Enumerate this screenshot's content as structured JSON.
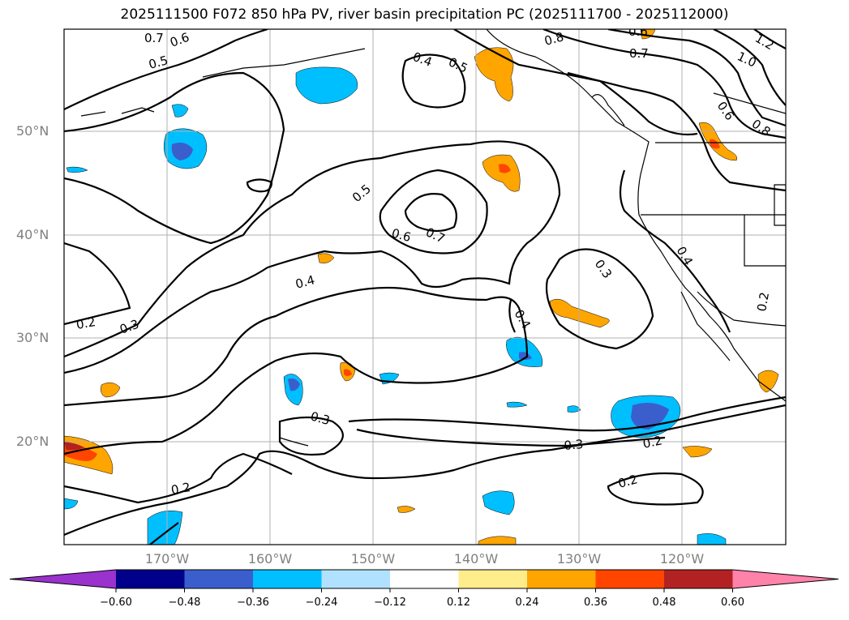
{
  "title": "2025111500 F072 850 hPa PV, river basin precipitation PC (2025111700 - 2025112000)",
  "lat_labels": [
    "50°N",
    "40°N",
    "30°N",
    "20°N"
  ],
  "lon_labels": [
    "170°W",
    "160°W",
    "150°W",
    "140°W",
    "130°W",
    "120°W"
  ],
  "contour_labels": [
    "0.7",
    "0.6",
    "0.5",
    "0.4",
    "0.5",
    "0.8",
    "0.6",
    "0.7",
    "1.0",
    "1.2",
    "0.6",
    "0.8",
    "0.5",
    "0.7",
    "0.6",
    "0.4",
    "0.3",
    "0.4",
    "0.4",
    "0.3",
    "0.2",
    "0.2",
    "0.3",
    "0.2",
    "0.3",
    "0.2",
    "0.2"
  ],
  "colorbar": {
    "ticks": [
      "−0.60",
      "−0.48",
      "−0.36",
      "−0.24",
      "−0.12",
      "0.12",
      "0.24",
      "0.36",
      "0.48",
      "0.60"
    ],
    "colors": [
      "#9a32cd",
      "#00008b",
      "#3a5fcd",
      "#00bfff",
      "#b0e2ff",
      "#ffffff",
      "#ffec8b",
      "#ffa500",
      "#ff4500",
      "#b22222",
      "#ff82ab"
    ]
  },
  "colors": {
    "contour": "#000000",
    "coast": "#000000",
    "grid": "#b0b0b0",
    "label": "#808080"
  }
}
